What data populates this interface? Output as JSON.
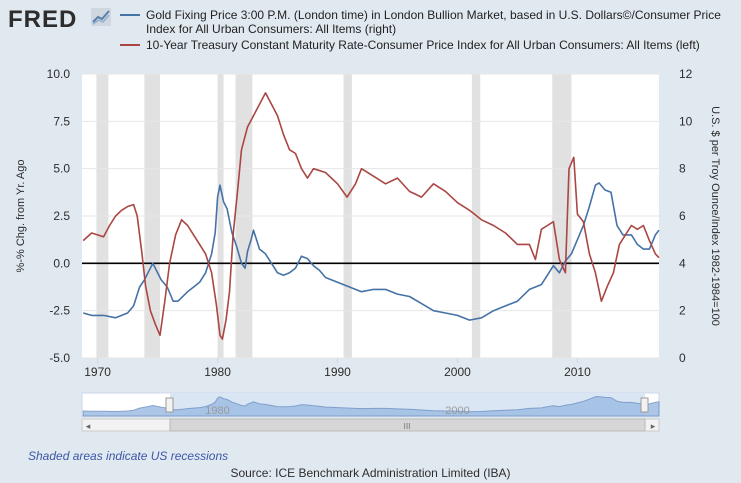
{
  "app": {
    "logo": "FRED"
  },
  "legend": [
    {
      "label": "Gold Fixing Price 3:00 P.M. (London time) in London Bullion Market, based in U.S. Dollars©/Consumer Price Index for All Urban Consumers: All Items (right)",
      "color": "#4572a7"
    },
    {
      "label": "10-Year Treasury Constant Maturity Rate-Consumer Price Index for All Urban Consumers: All Items (left)",
      "color": "#aa4643"
    }
  ],
  "footer": {
    "recession_note": "Shaded areas indicate US recessions",
    "source": "Source: ICE Benchmark Administration Limited (IBA)"
  },
  "navigator": {
    "labels": [
      "1980",
      "2000"
    ],
    "scroll_thumb": "III",
    "left_arrow": "◂",
    "right_arrow": "▸"
  },
  "chart_data": {
    "type": "line",
    "xlabel": "",
    "ylabel_left": "%-% Chg. from Yr. Ago",
    "ylabel_right": "U.S. $ per Troy Ounce/Index 1982-1984=100",
    "xlim": [
      1968.7,
      2016.8
    ],
    "ylim_left": [
      -5.0,
      10.0
    ],
    "ylim_right": [
      0,
      12
    ],
    "x_ticks": [
      "1970",
      "1980",
      "1990",
      "2000",
      "2010"
    ],
    "y_ticks_left": [
      "-5.0",
      "-2.5",
      "0.0",
      "2.5",
      "5.0",
      "7.5",
      "10.0"
    ],
    "y_ticks_right": [
      "0",
      "2",
      "4",
      "6",
      "8",
      "10",
      "12"
    ],
    "grid": true,
    "recessions": [
      [
        1969.9,
        1970.9
      ],
      [
        1973.9,
        1975.2
      ],
      [
        1980.0,
        1980.5
      ],
      [
        1981.5,
        1982.9
      ],
      [
        1990.5,
        1991.2
      ],
      [
        2001.2,
        2001.9
      ],
      [
        2007.9,
        2009.5
      ]
    ],
    "series": [
      {
        "name": "Gold Fixing Price 3:00 P.M. (London time) in London Bullion Market, based in U.S. Dollars©/Consumer Price Index for All Urban Consumers: All Items (right)",
        "axis": "right",
        "color": "#4572a7",
        "x": [
          1968.8,
          1969.5,
          1970.5,
          1971.5,
          1972.5,
          1973.0,
          1973.5,
          1973.9,
          1974.2,
          1974.6,
          1974.9,
          1975.3,
          1975.8,
          1976.3,
          1976.7,
          1977.5,
          1978.5,
          1979.0,
          1979.5,
          1979.8,
          1980.0,
          1980.2,
          1980.5,
          1980.8,
          1981.2,
          1981.6,
          1982.0,
          1982.3,
          1982.5,
          1982.8,
          1983.0,
          1983.5,
          1984.0,
          1984.5,
          1985.0,
          1985.5,
          1986.0,
          1986.5,
          1987.0,
          1987.5,
          1988.0,
          1988.5,
          1989.0,
          1989.5,
          1990.0,
          1991.0,
          1992.0,
          1993.0,
          1994.0,
          1995.0,
          1996.0,
          1997.0,
          1998.0,
          1999.0,
          2000.0,
          2001.0,
          2002.0,
          2003.0,
          2004.0,
          2005.0,
          2006.0,
          2007.0,
          2007.5,
          2008.0,
          2008.5,
          2009.0,
          2009.5,
          2010.0,
          2010.5,
          2011.0,
          2011.5,
          2011.8,
          2012.3,
          2012.8,
          2013.3,
          2013.8,
          2014.5,
          2015.0,
          2015.5,
          2016.0,
          2016.5,
          2016.8
        ],
        "values": [
          1.9,
          1.8,
          1.8,
          1.7,
          1.9,
          2.2,
          3.0,
          3.3,
          3.6,
          4.0,
          3.7,
          3.3,
          3.0,
          2.4,
          2.4,
          2.8,
          3.2,
          3.6,
          4.4,
          5.3,
          6.8,
          7.3,
          6.6,
          6.3,
          5.3,
          4.7,
          4.0,
          3.8,
          4.5,
          5.0,
          5.4,
          4.6,
          4.4,
          4.0,
          3.6,
          3.5,
          3.6,
          3.8,
          4.3,
          4.2,
          3.9,
          3.7,
          3.4,
          3.3,
          3.2,
          3.0,
          2.8,
          2.9,
          2.9,
          2.7,
          2.6,
          2.3,
          2.0,
          1.9,
          1.8,
          1.6,
          1.7,
          2.0,
          2.2,
          2.4,
          2.9,
          3.1,
          3.5,
          3.9,
          3.6,
          4.1,
          4.4,
          5.0,
          5.6,
          6.4,
          7.3,
          7.4,
          7.1,
          7.0,
          5.6,
          5.2,
          5.2,
          4.8,
          4.6,
          4.6,
          5.2,
          5.4
        ]
      },
      {
        "name": "10-Year Treasury Constant Maturity Rate-Consumer Price Index for All Urban Consumers: All Items (left)",
        "axis": "left",
        "color": "#aa4643",
        "x": [
          1968.8,
          1969.5,
          1970.0,
          1970.5,
          1971.0,
          1971.5,
          1972.0,
          1972.5,
          1973.0,
          1973.3,
          1973.7,
          1974.0,
          1974.4,
          1974.8,
          1975.2,
          1975.6,
          1976.0,
          1976.5,
          1977.0,
          1977.5,
          1978.0,
          1978.5,
          1979.0,
          1979.5,
          1979.9,
          1980.2,
          1980.4,
          1980.7,
          1981.0,
          1981.3,
          1981.7,
          1982.0,
          1982.5,
          1983.0,
          1983.5,
          1984.0,
          1984.5,
          1985.0,
          1985.5,
          1986.0,
          1986.5,
          1987.0,
          1987.5,
          1988.0,
          1989.0,
          1990.0,
          1990.8,
          1991.5,
          1992.0,
          1993.0,
          1994.0,
          1995.0,
          1996.0,
          1997.0,
          1998.0,
          1999.0,
          2000.0,
          2001.0,
          2002.0,
          2003.0,
          2004.0,
          2005.0,
          2006.0,
          2006.5,
          2007.0,
          2007.5,
          2008.0,
          2008.5,
          2009.0,
          2009.3,
          2009.7,
          2010.0,
          2010.5,
          2011.0,
          2011.5,
          2012.0,
          2012.5,
          2013.0,
          2013.5,
          2014.0,
          2014.5,
          2015.0,
          2015.5,
          2016.0,
          2016.5,
          2016.8
        ],
        "values": [
          1.2,
          1.6,
          1.5,
          1.4,
          2.0,
          2.5,
          2.8,
          3.0,
          3.1,
          2.5,
          0.5,
          -1.2,
          -2.5,
          -3.2,
          -3.8,
          -2.0,
          0.0,
          1.5,
          2.3,
          2.0,
          1.5,
          1.0,
          0.5,
          -0.5,
          -2.2,
          -3.8,
          -4.0,
          -3.0,
          -1.5,
          1.5,
          4.0,
          6.0,
          7.2,
          7.8,
          8.4,
          9.0,
          8.4,
          7.8,
          6.8,
          6.0,
          5.8,
          5.0,
          4.5,
          5.0,
          4.8,
          4.2,
          3.5,
          4.2,
          5.0,
          4.6,
          4.2,
          4.5,
          3.8,
          3.5,
          4.2,
          3.8,
          3.2,
          2.8,
          2.3,
          2.0,
          1.6,
          1.0,
          1.0,
          0.2,
          1.8,
          2.0,
          2.2,
          0.2,
          -0.5,
          5.0,
          5.6,
          2.6,
          2.2,
          0.5,
          -0.5,
          -2.0,
          -1.2,
          -0.5,
          1.0,
          1.5,
          2.0,
          1.8,
          2.0,
          1.2,
          0.5,
          0.3
        ]
      }
    ]
  }
}
